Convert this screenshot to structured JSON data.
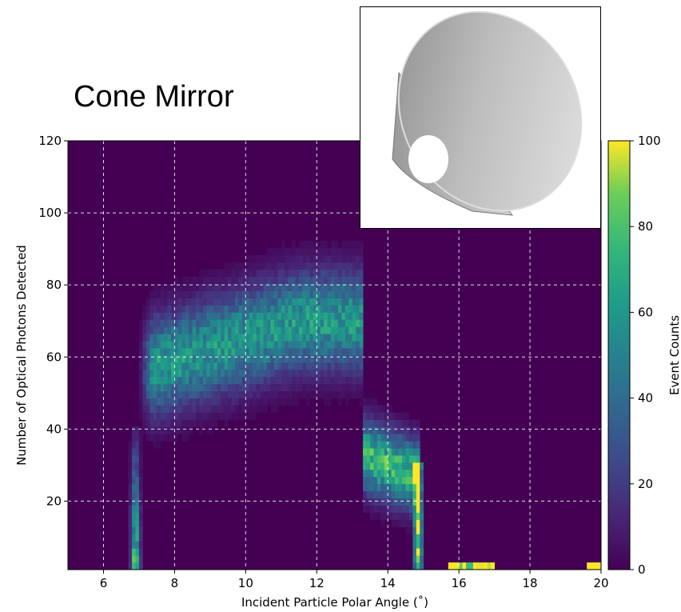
{
  "chart_data": {
    "type": "heatmap",
    "title": "Cone Mirror",
    "xlabel": "Incident Particle Polar Angle (˚)",
    "ylabel": "Number of Optical Photons Detected",
    "xlim": [
      5,
      20
    ],
    "ylim": [
      1,
      120
    ],
    "xticks": [
      6,
      8,
      10,
      12,
      14,
      16,
      18,
      20
    ],
    "yticks": [
      20,
      40,
      60,
      80,
      100,
      120
    ],
    "grid": true,
    "colormap": "viridis",
    "colorbar": {
      "label": "Event Counts",
      "range": [
        0,
        100
      ],
      "ticks": [
        0,
        20,
        40,
        60,
        80,
        100
      ]
    },
    "inset": {
      "description": "3D rendering of a cone-shaped mirror",
      "position": "top-right"
    },
    "features": [
      {
        "name": "main band",
        "x_range": [
          7.0,
          13.3
        ],
        "y_center_start": 56,
        "y_center_peak": 70,
        "peak_counts": 60
      },
      {
        "name": "secondary cluster",
        "x_range": [
          13.3,
          14.9
        ],
        "y_center": 33,
        "peak_counts": 100
      },
      {
        "name": "turn-on edge",
        "x": 6.9,
        "y_range": [
          1,
          40
        ],
        "peak_counts": 100
      },
      {
        "name": "cutoff edge",
        "x": 14.85,
        "y_range": [
          1,
          30
        ],
        "peak_counts": 100
      },
      {
        "name": "low-photon blob",
        "x_range": [
          15.7,
          17.0
        ],
        "y_range": [
          1,
          3
        ],
        "peak_counts": 100
      },
      {
        "name": "low-photon edge blob",
        "x_range": [
          19.6,
          20.0
        ],
        "y_range": [
          1,
          3
        ],
        "peak_counts": 100
      }
    ]
  }
}
